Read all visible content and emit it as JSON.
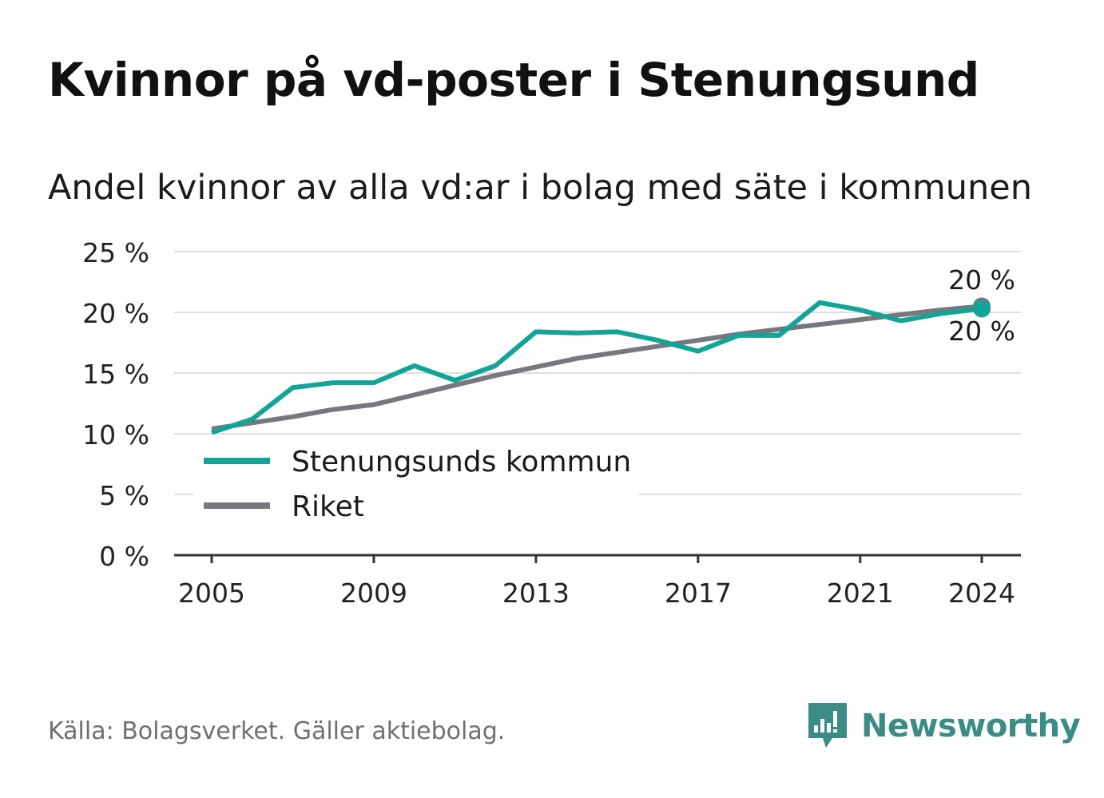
{
  "header": {
    "title": "Kvinnor på vd-poster i Stenungsund",
    "subtitle": "Andel kvinnor av alla vd:ar i bolag med säte i kommunen"
  },
  "footer": {
    "source": "Källa: Bolagsverket. Gäller aktiebolag.",
    "brand": "Newsworthy"
  },
  "colors": {
    "stenungsund": "#12a597",
    "riket": "#78777e",
    "grid": "#dedede",
    "axis": "#333333",
    "brand": "#3a8c85"
  },
  "chart_data": {
    "type": "line",
    "x": [
      2005,
      2006,
      2007,
      2008,
      2009,
      2010,
      2011,
      2012,
      2013,
      2014,
      2015,
      2016,
      2017,
      2018,
      2019,
      2020,
      2021,
      2022,
      2023,
      2024
    ],
    "series": [
      {
        "name": "Stenungsunds kommun",
        "color": "#12a597",
        "values": [
          10.1,
          11.2,
          13.8,
          14.2,
          14.2,
          15.6,
          14.4,
          15.6,
          18.4,
          18.3,
          18.4,
          17.7,
          16.8,
          18.1,
          18.1,
          20.8,
          20.2,
          19.3,
          19.9,
          20.3
        ]
      },
      {
        "name": "Riket",
        "color": "#78777e",
        "values": [
          10.4,
          10.9,
          11.4,
          12.0,
          12.4,
          13.2,
          14.0,
          14.8,
          15.5,
          16.2,
          16.7,
          17.2,
          17.7,
          18.2,
          18.6,
          19.0,
          19.4,
          19.8,
          20.2,
          20.5
        ]
      }
    ],
    "ylim": [
      0,
      25
    ],
    "yticks": [
      0,
      5,
      10,
      15,
      20,
      25
    ],
    "ytick_labels": [
      "0 %",
      "5 %",
      "10 %",
      "15 %",
      "20 %",
      "25 %"
    ],
    "xticks": [
      2005,
      2009,
      2013,
      2017,
      2021,
      2024
    ],
    "xtick_labels": [
      "2005",
      "2009",
      "2013",
      "2017",
      "2021",
      "2024"
    ],
    "end_labels": [
      "20 %",
      "20 %"
    ],
    "grid": true,
    "legend_position": "bottom-left"
  }
}
